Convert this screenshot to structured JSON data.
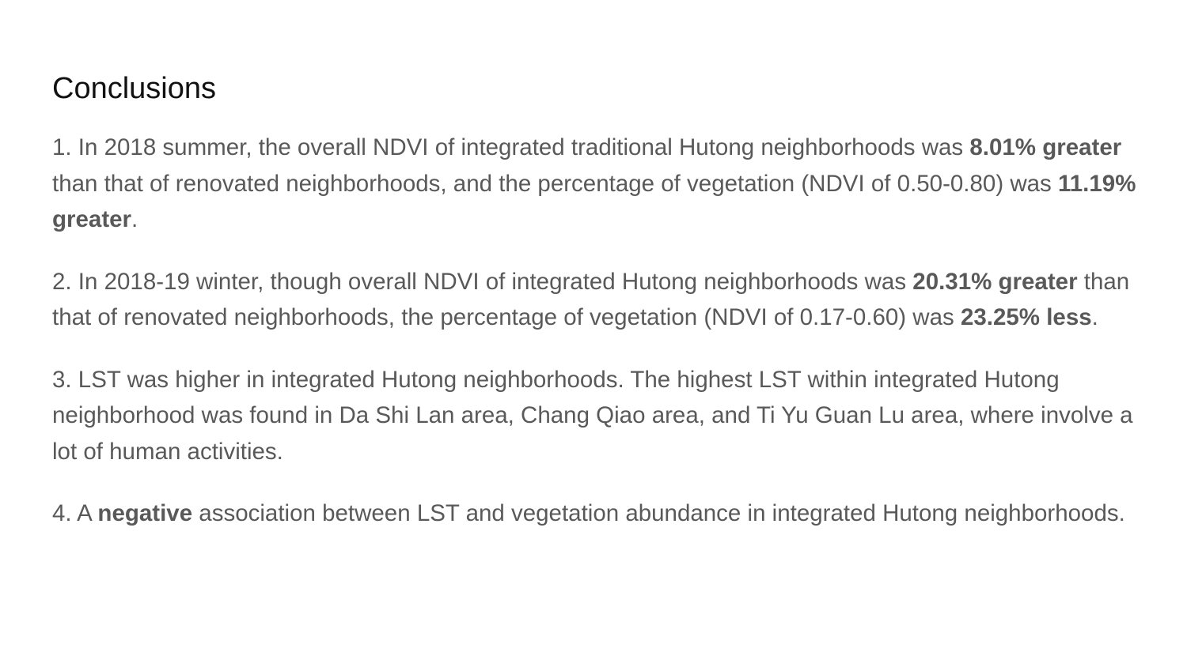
{
  "slide": {
    "title": "Conclusions",
    "points": [
      {
        "p1": "1. In 2018 summer, the overall NDVI of integrated traditional Hutong neighborhoods was ",
        "b1": "8.01% greater",
        "p2": " than that of renovated neighborhoods, and the percentage of vegetation (NDVI of 0.50-0.80) was ",
        "b2": "11.19% greater",
        "p3": "."
      },
      {
        "p1": "2. In 2018-19 winter, though overall NDVI of integrated Hutong neighborhoods was ",
        "b1": "20.31% greater",
        "p2": " than that of renovated neighborhoods, the percentage of vegetation (NDVI of 0.17-0.60) was ",
        "b2": "23.25% less",
        "p3": "."
      },
      {
        "p1": "3. LST was higher in integrated Hutong neighborhoods. The highest LST within integrated Hutong neighborhood was found in Da Shi Lan area, Chang Qiao area, and Ti Yu Guan Lu area, where involve a lot of human activities."
      },
      {
        "p1": "4. A ",
        "b1": "negative",
        "p2": " association between LST and vegetation abundance in integrated Hutong neighborhoods."
      }
    ]
  },
  "colors": {
    "background": "#ffffff",
    "title": "#111111",
    "body_text": "#595959"
  }
}
